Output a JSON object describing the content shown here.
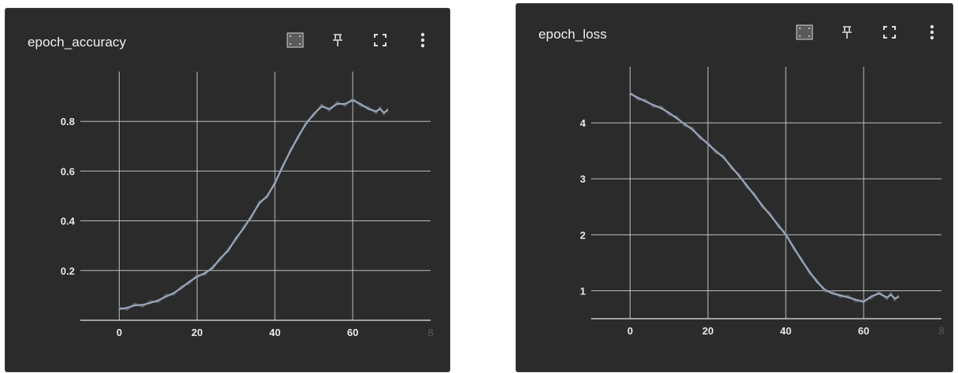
{
  "cards": [
    {
      "title": "epoch_accuracy",
      "toolbar": {
        "fit_icon": "fit-domain-icon",
        "pin_icon": "pin-icon",
        "expand_icon": "fullscreen-icon",
        "menu_icon": "more-vert-icon"
      }
    },
    {
      "title": "epoch_loss",
      "toolbar": {
        "fit_icon": "fit-domain-icon",
        "pin_icon": "pin-icon",
        "expand_icon": "fullscreen-icon",
        "menu_icon": "more-vert-icon"
      }
    }
  ],
  "colors": {
    "card_bg": "#2b2b2b",
    "line": "#9aa7b8",
    "line_raw": "#5d6673",
    "grid": "#d9d9d9",
    "text": "#e8e8e8"
  },
  "chart_data": [
    {
      "type": "line",
      "title": "epoch_accuracy",
      "xlabel": "",
      "ylabel": "",
      "xlim": [
        -10,
        80
      ],
      "ylim": [
        0,
        1
      ],
      "x_ticks": [
        "0",
        "20",
        "40",
        "60",
        "8"
      ],
      "y_ticks": [
        "0.2",
        "0.4",
        "0.6",
        "0.8"
      ],
      "grid": true,
      "series": [
        {
          "x": [
            0,
            2,
            4,
            6,
            8,
            10,
            12,
            14,
            16,
            18,
            20,
            22,
            24,
            26,
            28,
            30,
            32,
            34,
            36,
            38,
            40,
            42,
            44,
            46,
            48,
            50,
            52,
            54,
            56,
            58,
            60,
            62,
            64,
            66,
            67,
            68,
            69
          ],
          "values": [
            0.045,
            0.05,
            0.06,
            0.062,
            0.07,
            0.08,
            0.095,
            0.11,
            0.13,
            0.155,
            0.175,
            0.19,
            0.21,
            0.25,
            0.28,
            0.33,
            0.37,
            0.42,
            0.47,
            0.5,
            0.55,
            0.62,
            0.68,
            0.74,
            0.79,
            0.83,
            0.86,
            0.85,
            0.87,
            0.87,
            0.885,
            0.87,
            0.85,
            0.84,
            0.85,
            0.835,
            0.845
          ]
        }
      ]
    },
    {
      "type": "line",
      "title": "epoch_loss",
      "xlabel": "",
      "ylabel": "",
      "xlim": [
        -10,
        80
      ],
      "ylim": [
        0.5,
        5
      ],
      "x_ticks": [
        "0",
        "20",
        "40",
        "60",
        "8"
      ],
      "y_ticks": [
        "1",
        "2",
        "3",
        "4"
      ],
      "grid": true,
      "series": [
        {
          "x": [
            0,
            2,
            4,
            6,
            8,
            10,
            12,
            14,
            16,
            18,
            20,
            22,
            24,
            26,
            28,
            30,
            32,
            34,
            36,
            38,
            40,
            42,
            44,
            46,
            48,
            50,
            52,
            54,
            56,
            58,
            60,
            62,
            64,
            66,
            67,
            68,
            69
          ],
          "values": [
            4.52,
            4.45,
            4.38,
            4.32,
            4.26,
            4.18,
            4.08,
            3.98,
            3.88,
            3.75,
            3.62,
            3.5,
            3.38,
            3.22,
            3.05,
            2.88,
            2.7,
            2.52,
            2.35,
            2.18,
            2.0,
            1.78,
            1.55,
            1.35,
            1.16,
            1.02,
            0.95,
            0.92,
            0.88,
            0.84,
            0.8,
            0.9,
            0.95,
            0.88,
            0.93,
            0.86,
            0.89
          ]
        }
      ]
    }
  ]
}
